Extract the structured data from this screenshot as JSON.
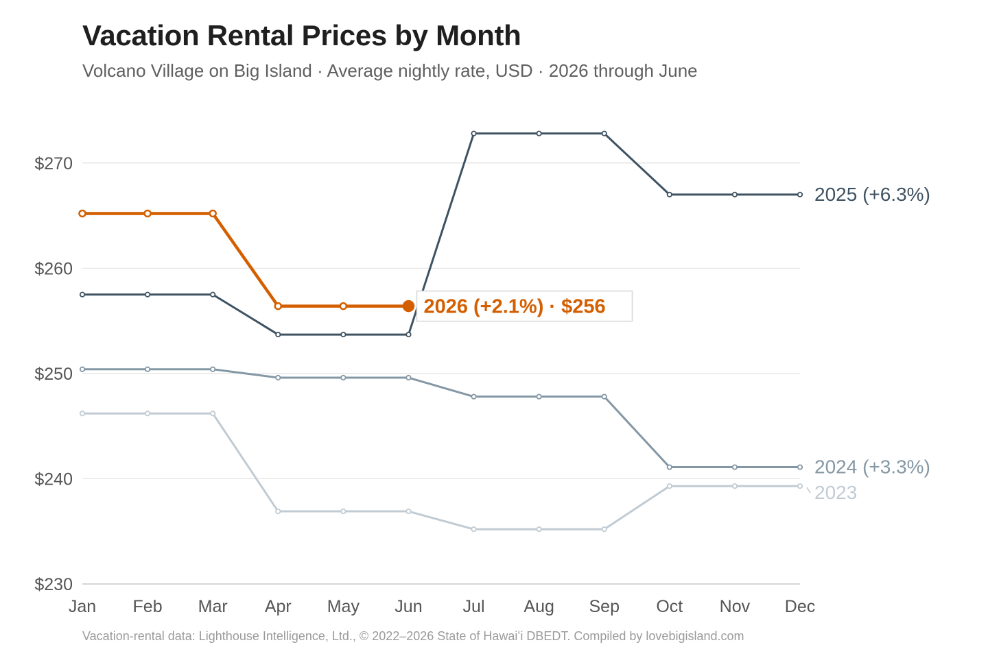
{
  "title": "Vacation Rental Prices by Month",
  "subtitle": "Volcano Village on Big Island · Average nightly rate, USD · 2026 through June",
  "source": "Vacation-rental data: Lighthouse Intelligence, Ltd., © 2022–2026 State of Hawaiʻi DBEDT. Compiled by lovebigisland.com",
  "colors": {
    "highlight": "#d35f00",
    "series_2025": "#3e5262",
    "series_2024": "#8497a5",
    "series_2023": "#c1cbd3",
    "grid": "#e3e3e3",
    "axis_text": "#555555"
  },
  "chart_data": {
    "type": "line",
    "categories": [
      "Jan",
      "Feb",
      "Mar",
      "Apr",
      "May",
      "Jun",
      "Jul",
      "Aug",
      "Sep",
      "Oct",
      "Nov",
      "Dec"
    ],
    "ylim": [
      230,
      275
    ],
    "yticks": [
      230,
      240,
      250,
      260,
      270
    ],
    "ytick_labels": [
      "$230",
      "$240",
      "$250",
      "$260",
      "$270"
    ],
    "grid": true,
    "series": [
      {
        "name": "2023",
        "label": "2023",
        "color": "#c1cbd3",
        "values": [
          246.2,
          246.2,
          246.2,
          236.9,
          236.9,
          236.9,
          235.2,
          235.2,
          235.2,
          239.3,
          239.3,
          239.3
        ]
      },
      {
        "name": "2024",
        "label": "2024 (+3.3%)",
        "color": "#8497a5",
        "values": [
          250.4,
          250.4,
          250.4,
          249.6,
          249.6,
          249.6,
          247.8,
          247.8,
          247.8,
          241.1,
          241.1,
          241.1
        ]
      },
      {
        "name": "2025",
        "label": "2025 (+6.3%)",
        "color": "#3e5262",
        "values": [
          257.5,
          257.5,
          257.5,
          253.7,
          253.7,
          253.7,
          272.8,
          272.8,
          272.8,
          267.0,
          267.0,
          267.0
        ]
      },
      {
        "name": "2026",
        "label": "2026 (+2.1%) · $256",
        "color": "#d35f00",
        "highlight": true,
        "values": [
          265.2,
          265.2,
          265.2,
          256.4,
          256.4,
          256.4,
          null,
          null,
          null,
          null,
          null,
          null
        ]
      }
    ]
  }
}
